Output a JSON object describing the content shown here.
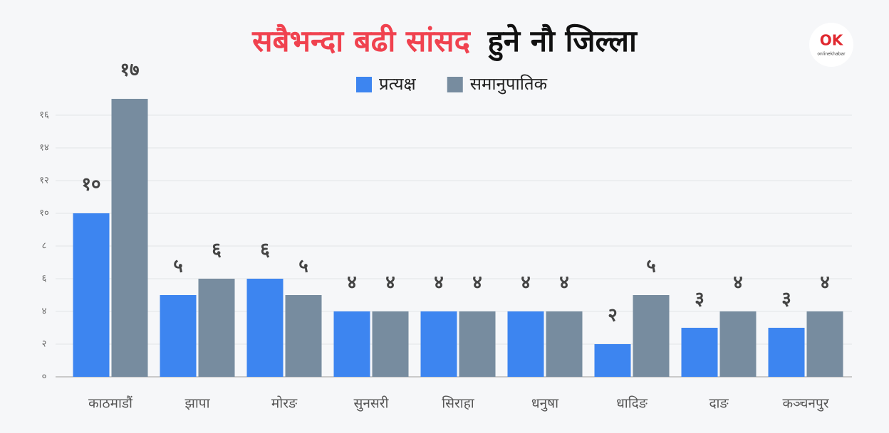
{
  "logo": {
    "mark": "OK",
    "text": "onlinekhabar"
  },
  "chart_data": {
    "type": "bar",
    "title": [
      "सबैभन्दा बढी सांसद",
      "हुने नौ जिल्ला"
    ],
    "title_colors": [
      "#f0424f",
      "#111111"
    ],
    "categories": [
      "काठमाडौं",
      "झापा",
      "मोरङ",
      "सुनसरी",
      "सिराहा",
      "धनुषा",
      "धादिङ",
      "दाङ",
      "कञ्चनपुर"
    ],
    "series": [
      {
        "name": "प्रत्यक्ष",
        "color": "#3d85f0",
        "values": [
          10,
          5,
          6,
          4,
          4,
          4,
          2,
          3,
          3
        ],
        "value_labels": [
          "१०",
          "५",
          "६",
          "४",
          "४",
          "४",
          "२",
          "३",
          "३"
        ]
      },
      {
        "name": "समानुपातिक",
        "color": "#778c9f",
        "values": [
          17,
          6,
          5,
          4,
          4,
          4,
          5,
          4,
          4
        ],
        "value_labels": [
          "१७",
          "६",
          "५",
          "४",
          "४",
          "४",
          "५",
          "४",
          "४"
        ]
      }
    ],
    "ylim": [
      0,
      17
    ],
    "yticks": [
      {
        "value": 0,
        "label": "०"
      },
      {
        "value": 2,
        "label": "२"
      },
      {
        "value": 4,
        "label": "४"
      },
      {
        "value": 6,
        "label": "६"
      },
      {
        "value": 8,
        "label": "८"
      },
      {
        "value": 10,
        "label": "१०"
      },
      {
        "value": 12,
        "label": "१२"
      },
      {
        "value": 14,
        "label": "१४"
      },
      {
        "value": 16,
        "label": "१६"
      }
    ],
    "grid": true
  }
}
